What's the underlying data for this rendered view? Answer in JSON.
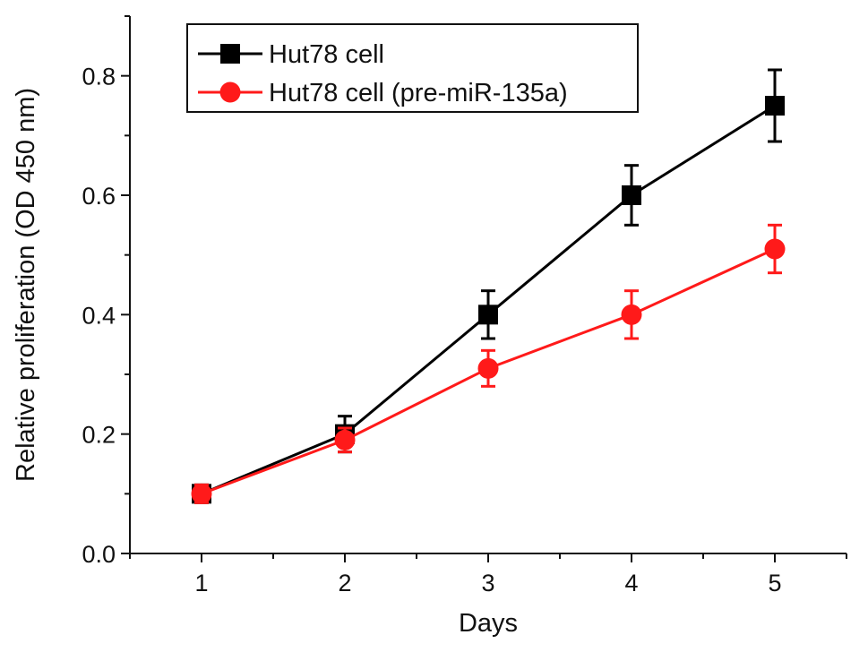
{
  "chart_data": {
    "type": "line",
    "xlabel": "Days",
    "ylabel": "Relative proliferation (OD 450 nm)",
    "x": [
      1,
      2,
      3,
      4,
      5
    ],
    "xlim": [
      0.5,
      5.5
    ],
    "ylim": [
      0.0,
      0.9
    ],
    "x_ticks": [
      "1",
      "2",
      "3",
      "4",
      "5"
    ],
    "y_ticks": [
      "0.0",
      "0.2",
      "0.4",
      "0.6",
      "0.8"
    ],
    "grid": false,
    "legend_position": "top-left",
    "series": [
      {
        "name": "Hut78 cell",
        "color": "#000000",
        "marker": "square",
        "values": [
          0.1,
          0.2,
          0.4,
          0.6,
          0.75
        ],
        "errors": [
          0.015,
          0.03,
          0.04,
          0.05,
          0.06
        ]
      },
      {
        "name": "Hut78 cell (pre-miR-135a)",
        "color": "#ff1a1a",
        "marker": "circle",
        "values": [
          0.1,
          0.19,
          0.31,
          0.4,
          0.51
        ],
        "errors": [
          0.015,
          0.02,
          0.03,
          0.04,
          0.04
        ]
      }
    ]
  }
}
